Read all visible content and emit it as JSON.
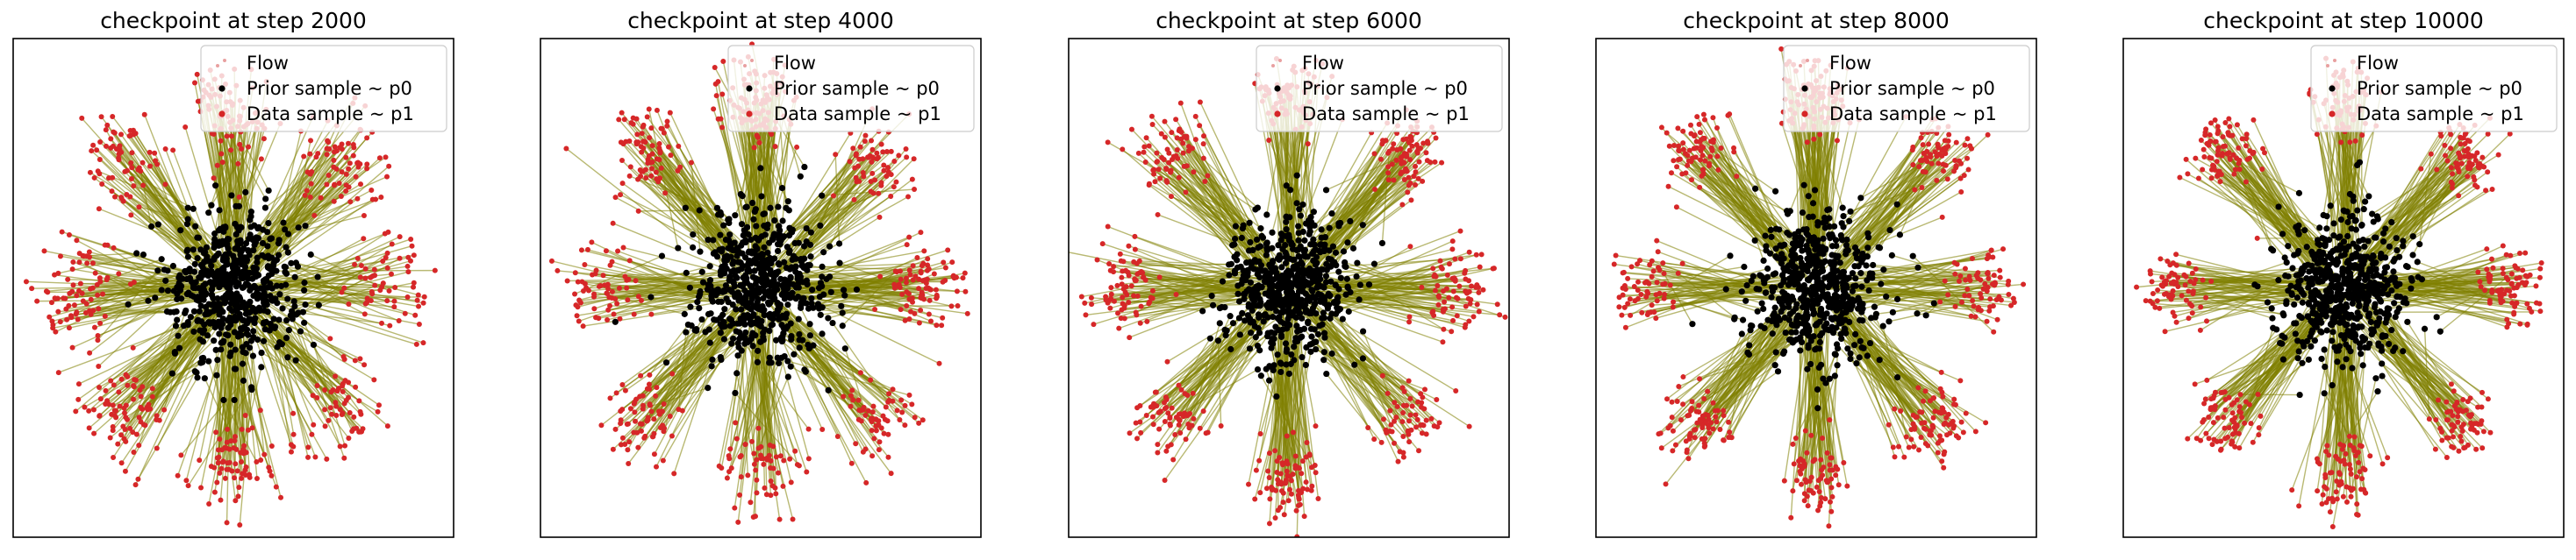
{
  "chart_data": [
    {
      "type": "scatter",
      "title": "checkpoint at step 2000",
      "xlabel": "",
      "ylabel": "",
      "xticks": [],
      "yticks": [],
      "xlim": [
        -5,
        5
      ],
      "ylim": [
        -5,
        5
      ],
      "grid": false,
      "legend": {
        "placement": "top-right"
      },
      "prior": {
        "distribution": "gaussian",
        "mean": [
          0,
          0
        ],
        "std": 1.0
      },
      "data": {
        "distribution": "gaussian mixture",
        "components": 8,
        "radius": 3.5,
        "std": 0.5
      },
      "series": [
        {
          "name": "Flow",
          "kind": "trajectory",
          "color": "#808000"
        },
        {
          "name": "Prior sample ~ p0",
          "kind": "point",
          "color": "#000000"
        },
        {
          "name": "Data sample ~ p1",
          "kind": "point",
          "color": "#d62728"
        }
      ]
    },
    {
      "type": "scatter",
      "title": "checkpoint at step 4000",
      "xlabel": "",
      "ylabel": "",
      "xticks": [],
      "yticks": [],
      "xlim": [
        -5,
        5
      ],
      "ylim": [
        -5,
        5
      ],
      "grid": false,
      "legend": {
        "placement": "top-right"
      },
      "prior": {
        "distribution": "gaussian",
        "mean": [
          0,
          0
        ],
        "std": 1.0
      },
      "data": {
        "distribution": "gaussian mixture",
        "components": 8,
        "radius": 3.7,
        "std": 0.45
      },
      "series": [
        {
          "name": "Flow",
          "kind": "trajectory",
          "color": "#808000"
        },
        {
          "name": "Prior sample ~ p0",
          "kind": "point",
          "color": "#000000"
        },
        {
          "name": "Data sample ~ p1",
          "kind": "point",
          "color": "#d62728"
        }
      ]
    },
    {
      "type": "scatter",
      "title": "checkpoint at step 6000",
      "xlabel": "",
      "ylabel": "",
      "xticks": [],
      "yticks": [],
      "xlim": [
        -5,
        5
      ],
      "ylim": [
        -5,
        5
      ],
      "grid": false,
      "legend": {
        "placement": "top-right"
      },
      "prior": {
        "distribution": "gaussian",
        "mean": [
          0,
          0
        ],
        "std": 1.0
      },
      "data": {
        "distribution": "gaussian mixture",
        "components": 8,
        "radius": 3.8,
        "std": 0.42
      },
      "series": [
        {
          "name": "Flow",
          "kind": "trajectory",
          "color": "#808000"
        },
        {
          "name": "Prior sample ~ p0",
          "kind": "point",
          "color": "#000000"
        },
        {
          "name": "Data sample ~ p1",
          "kind": "point",
          "color": "#d62728"
        }
      ]
    },
    {
      "type": "scatter",
      "title": "checkpoint at step 8000",
      "xlabel": "",
      "ylabel": "",
      "xticks": [],
      "yticks": [],
      "xlim": [
        -5,
        5
      ],
      "ylim": [
        -5,
        5
      ],
      "grid": false,
      "legend": {
        "placement": "top-right"
      },
      "prior": {
        "distribution": "gaussian",
        "mean": [
          0,
          0
        ],
        "std": 1.0
      },
      "data": {
        "distribution": "gaussian mixture",
        "components": 8,
        "radius": 3.8,
        "std": 0.4
      },
      "series": [
        {
          "name": "Flow",
          "kind": "trajectory",
          "color": "#808000"
        },
        {
          "name": "Prior sample ~ p0",
          "kind": "point",
          "color": "#000000"
        },
        {
          "name": "Data sample ~ p1",
          "kind": "point",
          "color": "#d62728"
        }
      ]
    },
    {
      "type": "scatter",
      "title": "checkpoint at step 10000",
      "xlabel": "",
      "ylabel": "",
      "xticks": [],
      "yticks": [],
      "xlim": [
        -5,
        5
      ],
      "ylim": [
        -5,
        5
      ],
      "grid": false,
      "legend": {
        "placement": "top-right"
      },
      "prior": {
        "distribution": "gaussian",
        "mean": [
          0,
          0
        ],
        "std": 1.0
      },
      "data": {
        "distribution": "gaussian mixture",
        "components": 8,
        "radius": 3.8,
        "std": 0.38
      },
      "series": [
        {
          "name": "Flow",
          "kind": "trajectory",
          "color": "#808000"
        },
        {
          "name": "Prior sample ~ p0",
          "kind": "point",
          "color": "#000000"
        },
        {
          "name": "Data sample ~ p1",
          "kind": "point",
          "color": "#d62728"
        }
      ]
    }
  ]
}
